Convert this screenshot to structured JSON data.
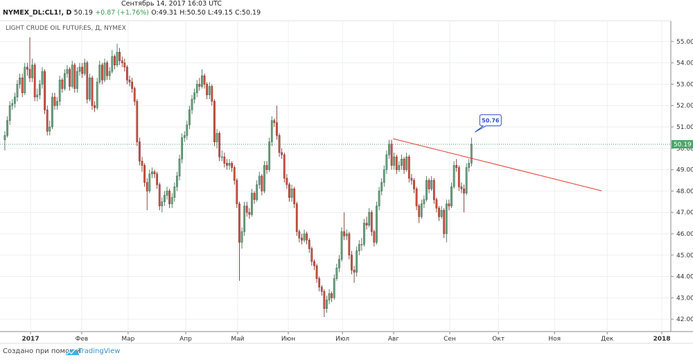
{
  "header": {
    "datetime": "Сентябрь 14, 2017 16:03 UTC",
    "symbol": "NYMEX_DL:CL1!, D",
    "last": "50.19",
    "change": "+0.87 (+1.76%)",
    "ohlc": [
      "O:49.31",
      "H:50.50",
      "L:49.15",
      "C:50.19"
    ]
  },
  "footer": {
    "created_with": "Создано при помощи",
    "brand": "TradingView"
  },
  "chart_data": {
    "type": "candlestick",
    "title": "LIGHT CRUDE OIL FUTURES, Д, NYMEX",
    "up_color": "#6ba583",
    "down_color": "#d75442",
    "grid": true,
    "xlim": [
      -1.94,
      266.9
    ],
    "xticks": [
      {
        "value": 10.3,
        "label": "2017"
      },
      {
        "value": 30.8,
        "label": "Фев"
      },
      {
        "value": 49.4,
        "label": "Мар"
      },
      {
        "value": 72.5,
        "label": "Апр"
      },
      {
        "value": 93.3,
        "label": "Май"
      },
      {
        "value": 113.6,
        "label": "Июн"
      },
      {
        "value": 135.3,
        "label": "Июл"
      },
      {
        "value": 155.8,
        "label": "Авг"
      },
      {
        "value": 178.3,
        "label": "Сен"
      },
      {
        "value": 197.8,
        "label": "Окт"
      },
      {
        "value": 220.3,
        "label": "Ноя"
      },
      {
        "value": 241.4,
        "label": "Дек"
      },
      {
        "value": 263.3,
        "label": "2018"
      }
    ],
    "ylim": [
      41.42,
      55.97
    ],
    "yticks": [
      {
        "value": 42,
        "label": "42.00"
      },
      {
        "value": 43,
        "label": "43.00"
      },
      {
        "value": 44,
        "label": "44.00"
      },
      {
        "value": 45,
        "label": "45.00"
      },
      {
        "value": 46,
        "label": "46.00"
      },
      {
        "value": 47,
        "label": "47.00"
      },
      {
        "value": 48,
        "label": "48.00"
      },
      {
        "value": 49,
        "label": "49.00"
      },
      {
        "value": 50,
        "label": "50.00"
      },
      {
        "value": 51,
        "label": "51.00"
      },
      {
        "value": 52,
        "label": "52.00"
      },
      {
        "value": 53,
        "label": "53.00"
      },
      {
        "value": 54,
        "label": "54.00"
      },
      {
        "value": 55,
        "label": "55.00"
      }
    ],
    "last_price": {
      "value": 50.19,
      "label": "50.19"
    },
    "annotation": {
      "value": 50.76,
      "x": 187
    },
    "trendline": {
      "x": [
        155.6,
        239.2
      ],
      "y": [
        50.45,
        48.01
      ],
      "color": "#e53935"
    },
    "open": [
      50.4,
      50.6,
      51.3,
      52.0,
      52.1,
      52.4,
      53.0,
      53.3,
      52.6,
      53.8,
      53.7,
      53.3,
      53.9,
      52.4,
      52.5,
      53.0,
      53.6,
      51.8,
      50.8,
      51.0,
      52.4,
      52.0,
      52.2,
      53.2,
      52.8,
      53.5,
      53.7,
      52.9,
      53.9,
      52.8,
      53.6,
      53.8,
      53.5,
      54.0,
      52.3,
      53.3,
      52.0,
      51.9,
      53.1,
      53.9,
      53.2,
      54.0,
      53.4,
      53.6,
      54.3,
      53.9,
      54.5,
      54.1,
      54.0,
      53.8,
      53.2,
      53.1,
      52.8,
      52.2,
      50.3,
      49.4,
      49.2,
      48.4,
      48.0,
      48.8,
      48.9,
      48.8,
      48.3,
      47.3,
      47.5,
      47.8,
      48.0,
      47.4,
      47.7,
      48.2,
      48.7,
      49.5,
      50.5,
      50.6,
      51.1,
      51.8,
      52.3,
      52.6,
      53.0,
      52.9,
      53.4,
      53.0,
      52.5,
      52.9,
      52.2,
      50.3,
      50.7,
      49.6,
      49.6,
      49.3,
      49.2,
      49.3,
      49.1,
      48.5,
      47.4,
      45.6,
      46.1,
      47.3,
      47.0,
      46.9,
      47.9,
      47.6,
      48.3,
      48.7,
      48.0,
      49.2,
      49.0,
      50.3,
      51.3,
      51.2,
      50.6,
      49.8,
      49.7,
      48.6,
      48.3,
      47.7,
      48.1,
      47.4,
      46.1,
      45.8,
      45.7,
      46.0,
      45.7,
      45.3,
      44.7,
      44.5,
      43.9,
      43.5,
      43.3,
      42.5,
      42.9,
      43.2,
      43.0,
      43.9,
      44.4,
      44.8,
      46.1,
      45.9,
      46.0,
      45.0,
      44.3,
      44.2,
      45.2,
      45.5,
      45.5,
      46.5,
      46.4,
      47.0,
      46.1,
      45.6,
      47.3,
      48.0,
      48.4,
      49.0,
      49.7,
      50.2,
      49.2,
      49.6,
      49.0,
      49.2,
      49.5,
      49.0,
      49.6,
      48.6,
      48.5,
      48.1,
      47.3,
      46.8,
      47.4,
      47.6,
      48.5,
      48.1,
      48.5,
      47.6,
      47.2,
      46.8,
      47.1,
      46.0,
      47.4,
      47.3,
      48.2,
      49.2,
      49.1,
      48.2,
      48.1,
      47.9,
      49.1,
      49.31
    ],
    "high": [
      50.8,
      51.5,
      52.2,
      52.3,
      52.6,
      53.2,
      53.5,
      53.5,
      54.0,
      54.0,
      55.2,
      54.2,
      54.0,
      52.8,
      53.2,
      53.8,
      53.7,
      52.0,
      51.3,
      52.6,
      52.6,
      52.4,
      53.4,
      53.3,
      53.7,
      53.9,
      53.8,
      54.1,
      54.0,
      53.8,
      54.0,
      54.0,
      54.2,
      54.1,
      53.5,
      53.4,
      52.2,
      53.3,
      54.1,
      54.0,
      54.2,
      54.1,
      53.8,
      54.6,
      54.4,
      54.9,
      54.7,
      54.3,
      54.2,
      53.9,
      53.4,
      53.3,
      52.9,
      52.3,
      50.5,
      49.6,
      49.3,
      48.6,
      49.0,
      49.1,
      49.0,
      48.9,
      48.4,
      47.7,
      48.0,
      48.2,
      48.1,
      47.9,
      48.4,
      48.9,
      49.7,
      50.7,
      50.8,
      51.3,
      52.0,
      52.5,
      52.8,
      53.2,
      53.3,
      53.7,
      53.5,
      53.1,
      53.1,
      53.0,
      52.3,
      50.9,
      50.8,
      49.9,
      49.8,
      49.5,
      49.5,
      49.4,
      49.2,
      48.6,
      47.5,
      46.3,
      47.5,
      47.5,
      47.2,
      48.1,
      48.0,
      48.5,
      48.9,
      48.8,
      49.4,
      49.4,
      50.5,
      51.5,
      51.4,
      52.0,
      50.7,
      50.0,
      49.8,
      48.8,
      48.4,
      48.3,
      48.2,
      47.5,
      46.2,
      46.0,
      46.2,
      46.1,
      45.8,
      45.4,
      44.8,
      44.6,
      44.0,
      43.6,
      43.4,
      43.1,
      43.4,
      43.3,
      44.1,
      44.6,
      45.0,
      46.3,
      47.0,
      46.2,
      46.1,
      45.2,
      44.5,
      45.4,
      45.7,
      45.8,
      46.7,
      46.8,
      47.2,
      47.1,
      46.2,
      47.5,
      48.2,
      48.6,
      49.2,
      49.9,
      50.4,
      50.4,
      49.8,
      49.7,
      49.4,
      49.7,
      49.6,
      49.8,
      49.7,
      48.8,
      48.6,
      48.2,
      47.4,
      47.6,
      47.8,
      48.7,
      48.6,
      48.7,
      48.6,
      47.7,
      47.3,
      47.3,
      47.2,
      47.6,
      47.6,
      48.4,
      49.4,
      49.5,
      49.2,
      48.4,
      48.3,
      49.3,
      49.5,
      50.5
    ],
    "low": [
      49.9,
      50.5,
      51.1,
      51.8,
      51.9,
      52.2,
      52.8,
      52.4,
      52.5,
      53.4,
      53.1,
      53.1,
      52.2,
      52.2,
      52.3,
      52.8,
      51.6,
      50.6,
      50.6,
      50.9,
      51.8,
      51.8,
      52.0,
      52.6,
      52.7,
      53.3,
      52.7,
      52.8,
      52.6,
      52.6,
      53.4,
      53.3,
      53.4,
      52.1,
      52.2,
      51.8,
      51.7,
      51.8,
      53.0,
      53.0,
      53.1,
      53.2,
      53.2,
      53.5,
      53.7,
      53.8,
      53.9,
      53.8,
      53.6,
      53.0,
      52.9,
      52.6,
      52.0,
      50.1,
      49.2,
      48.9,
      48.2,
      47.1,
      47.9,
      48.6,
      48.6,
      48.1,
      47.1,
      47.0,
      47.3,
      47.6,
      47.2,
      47.2,
      47.5,
      48.0,
      48.5,
      49.3,
      50.3,
      50.4,
      50.9,
      51.6,
      52.1,
      52.4,
      52.7,
      52.8,
      52.8,
      52.3,
      52.3,
      52.0,
      50.1,
      50.0,
      49.4,
      49.4,
      49.1,
      49.0,
      49.0,
      48.9,
      48.3,
      47.2,
      43.8,
      45.3,
      45.9,
      46.8,
      46.7,
      46.8,
      47.4,
      47.5,
      48.1,
      47.8,
      47.9,
      48.8,
      48.9,
      50.1,
      51.0,
      50.4,
      49.6,
      49.5,
      48.4,
      48.1,
      47.5,
      47.5,
      47.2,
      45.9,
      45.6,
      45.5,
      45.6,
      45.5,
      45.1,
      44.5,
      44.3,
      43.7,
      43.3,
      43.1,
      42.1,
      42.3,
      42.7,
      42.8,
      42.9,
      43.8,
      44.2,
      44.7,
      45.7,
      45.7,
      44.8,
      44.1,
      43.7,
      44.0,
      45.0,
      45.2,
      45.4,
      46.2,
      46.3,
      45.9,
      45.4,
      45.5,
      47.1,
      47.8,
      48.2,
      48.8,
      49.5,
      49.0,
      49.0,
      48.8,
      48.9,
      49.0,
      48.8,
      48.9,
      48.4,
      48.3,
      47.9,
      47.1,
      46.5,
      46.7,
      47.2,
      47.5,
      47.9,
      48.0,
      47.4,
      47.0,
      46.6,
      46.7,
      45.8,
      45.6,
      47.1,
      47.2,
      48.1,
      48.9,
      48.0,
      47.9,
      47.0,
      47.8,
      48.9,
      49.15
    ],
    "close": [
      50.6,
      51.3,
      52.0,
      52.1,
      52.4,
      53.0,
      53.3,
      52.6,
      53.8,
      53.7,
      53.3,
      53.9,
      52.4,
      52.5,
      53.0,
      53.6,
      51.8,
      50.8,
      51.0,
      52.4,
      52.0,
      52.2,
      53.2,
      52.8,
      53.5,
      53.7,
      52.9,
      53.9,
      52.8,
      53.6,
      53.8,
      53.5,
      54.0,
      52.3,
      53.3,
      52.0,
      51.9,
      53.1,
      53.9,
      53.2,
      54.0,
      53.4,
      53.6,
      54.3,
      53.9,
      54.5,
      54.1,
      54.0,
      53.8,
      53.2,
      53.1,
      52.8,
      52.2,
      50.3,
      49.4,
      49.2,
      48.4,
      48.0,
      48.8,
      48.9,
      48.8,
      48.3,
      47.3,
      47.5,
      47.8,
      48.0,
      47.4,
      47.7,
      48.2,
      48.7,
      49.5,
      50.5,
      50.6,
      51.1,
      51.8,
      52.3,
      52.6,
      53.0,
      52.9,
      53.4,
      53.0,
      52.5,
      52.9,
      52.2,
      50.3,
      50.7,
      49.6,
      49.6,
      49.3,
      49.2,
      49.3,
      49.1,
      48.5,
      47.4,
      45.6,
      46.1,
      47.3,
      47.0,
      46.9,
      47.9,
      47.6,
      48.3,
      48.7,
      48.0,
      49.2,
      49.0,
      50.3,
      51.3,
      51.2,
      50.6,
      49.8,
      49.7,
      48.6,
      48.3,
      47.7,
      48.1,
      47.4,
      46.1,
      45.8,
      45.7,
      46.0,
      45.7,
      45.3,
      44.7,
      44.5,
      43.9,
      43.5,
      43.3,
      42.5,
      42.9,
      43.2,
      43.0,
      43.9,
      44.4,
      44.8,
      46.1,
      45.9,
      46.0,
      45.0,
      44.3,
      44.2,
      45.2,
      45.5,
      45.5,
      46.5,
      46.4,
      47.0,
      46.1,
      45.6,
      47.3,
      48.0,
      48.4,
      49.0,
      49.7,
      50.2,
      49.2,
      49.6,
      49.0,
      49.2,
      49.5,
      49.0,
      49.6,
      48.6,
      48.5,
      48.1,
      47.3,
      46.8,
      47.4,
      47.6,
      48.5,
      48.1,
      48.5,
      47.6,
      47.2,
      46.8,
      47.1,
      46.0,
      47.4,
      47.3,
      48.2,
      49.2,
      49.1,
      48.2,
      48.1,
      47.9,
      49.1,
      49.3,
      50.19
    ]
  }
}
